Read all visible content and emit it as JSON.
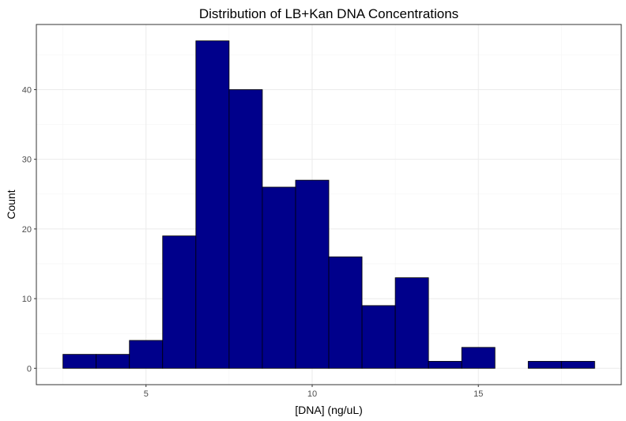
{
  "chart_data": {
    "type": "bar",
    "title": "Distribution of LB+Kan DNA Concentrations",
    "xlabel": "[DNA] (ng/uL)",
    "ylabel": "Count",
    "bin_width": 1,
    "bins": [
      {
        "start": 2.5,
        "end": 3.5,
        "count": 2
      },
      {
        "start": 3.5,
        "end": 4.5,
        "count": 2
      },
      {
        "start": 4.5,
        "end": 5.5,
        "count": 4
      },
      {
        "start": 5.5,
        "end": 6.5,
        "count": 19
      },
      {
        "start": 6.5,
        "end": 7.5,
        "count": 47
      },
      {
        "start": 7.5,
        "end": 8.5,
        "count": 40
      },
      {
        "start": 8.5,
        "end": 9.5,
        "count": 26
      },
      {
        "start": 9.5,
        "end": 10.5,
        "count": 27
      },
      {
        "start": 10.5,
        "end": 11.5,
        "count": 16
      },
      {
        "start": 11.5,
        "end": 12.5,
        "count": 9
      },
      {
        "start": 12.5,
        "end": 13.5,
        "count": 13
      },
      {
        "start": 13.5,
        "end": 14.5,
        "count": 1
      },
      {
        "start": 14.5,
        "end": 15.5,
        "count": 3
      },
      {
        "start": 15.5,
        "end": 16.5,
        "count": 0
      },
      {
        "start": 16.5,
        "end": 17.5,
        "count": 1
      },
      {
        "start": 17.5,
        "end": 18.5,
        "count": 1
      }
    ],
    "xlim": [
      1.7,
      19.3
    ],
    "ylim": [
      -2.35,
      49.35
    ],
    "x_ticks": [
      5,
      10,
      15
    ],
    "x_tick_labels": [
      "5",
      "10",
      "15"
    ],
    "y_ticks": [
      0,
      10,
      20,
      30,
      40
    ],
    "y_tick_labels": [
      "0",
      "10",
      "20",
      "30",
      "40"
    ],
    "grid": true,
    "legend": "none",
    "colors": {
      "bar_fill": "#00008B",
      "bar_outline": "#000000",
      "panel_border": "#333333",
      "grid_major": "#EBEBEB",
      "grid_minor": "#F5F5F5",
      "tick_label": "#4D4D4D"
    }
  }
}
